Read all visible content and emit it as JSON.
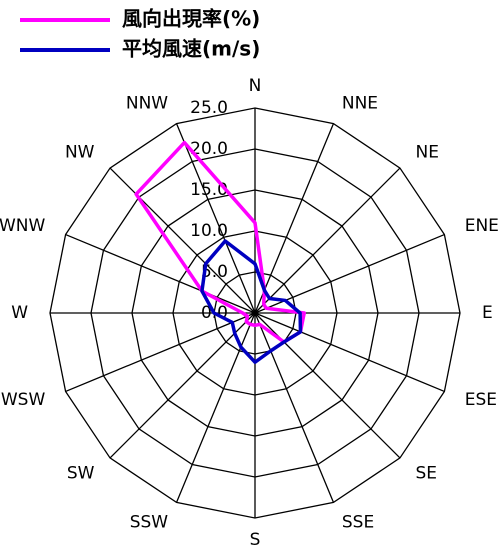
{
  "chart_data": {
    "type": "radar",
    "categories": [
      "N",
      "NNE",
      "NE",
      "ENE",
      "E",
      "ESE",
      "SE",
      "SSE",
      "S",
      "SSW",
      "SW",
      "WSW",
      "W",
      "WNW",
      "NW",
      "NNW"
    ],
    "series": [
      {
        "name": "風向出現率(%)",
        "color": "#ff00ff",
        "values": [
          11,
          3,
          1.5,
          1.5,
          6,
          6,
          5,
          1.5,
          1.5,
          1.5,
          1.5,
          1,
          1.5,
          7,
          20.5,
          22.5
        ]
      },
      {
        "name": "平均風速(m/s)",
        "color": "#0000c0",
        "values": [
          6,
          3,
          2.5,
          4,
          5.5,
          6,
          5,
          5,
          6,
          4.5,
          3.5,
          3,
          5,
          7,
          8.5,
          9.5
        ]
      }
    ],
    "rlim": [
      0,
      25
    ],
    "rticks": [
      {
        "value": 0,
        "label": "0.0"
      },
      {
        "value": 5,
        "label": "5.0"
      },
      {
        "value": 10,
        "label": "10.0"
      },
      {
        "value": 15,
        "label": "15.0"
      },
      {
        "value": 20,
        "label": "20.0"
      },
      {
        "value": 25,
        "label": "25.0"
      }
    ]
  }
}
